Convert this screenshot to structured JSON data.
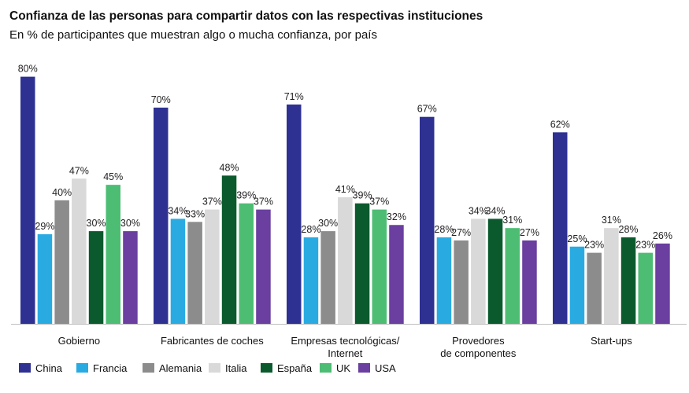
{
  "chart_data": {
    "type": "bar",
    "title": "Confianza de las personas para compartir datos con las respectivas instituciones",
    "subtitle": "En % de participantes que muestran algo o mucha confianza, por país",
    "categories": [
      "Gobierno",
      "Fabricantes de coches",
      "Empresas tecnológicas/\nInternet",
      "Provedores\nde componentes",
      "Start-ups"
    ],
    "series": [
      {
        "name": "China",
        "color": "#2e3192",
        "values": [
          80,
          70,
          71,
          67,
          62
        ]
      },
      {
        "name": "Francia",
        "color": "#29abe2",
        "values": [
          29,
          34,
          28,
          28,
          25
        ]
      },
      {
        "name": "Alemania",
        "color": "#8c8c8c",
        "values": [
          40,
          33,
          30,
          27,
          23
        ]
      },
      {
        "name": "Italia",
        "color": "#d9d9d9",
        "values": [
          47,
          37,
          41,
          34,
          31
        ]
      },
      {
        "name": "España",
        "color": "#0b5a2e",
        "values": [
          30,
          48,
          39,
          34,
          28
        ]
      },
      {
        "name": "UK",
        "color": "#4dbd74",
        "values": [
          45,
          39,
          37,
          31,
          23
        ]
      },
      {
        "name": "USA",
        "color": "#6a3fa0",
        "values": [
          30,
          37,
          32,
          27,
          26
        ]
      }
    ],
    "value_suffix": "%",
    "ylim": [
      0,
      80
    ],
    "grid": false,
    "legend_position": "bottom-left"
  }
}
